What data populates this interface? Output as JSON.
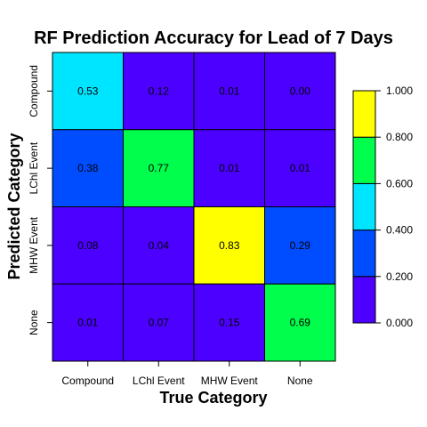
{
  "chart_data": {
    "type": "heatmap",
    "title": "RF Prediction Accuracy for Lead of 7 Days",
    "xlabel": "True Category",
    "ylabel": "Predicted Category",
    "x_categories": [
      "Compound",
      "LChl Event",
      "MHW Event",
      "None"
    ],
    "y_categories": [
      "Compound",
      "LChl Event",
      "MHW Event",
      "None"
    ],
    "values": [
      [
        0.53,
        0.12,
        0.01,
        0.0
      ],
      [
        0.38,
        0.77,
        0.01,
        0.01
      ],
      [
        0.08,
        0.04,
        0.83,
        0.29
      ],
      [
        0.01,
        0.07,
        0.15,
        0.69
      ]
    ],
    "value_labels": [
      [
        "0.53",
        "0.12",
        "0.01",
        "0.00"
      ],
      [
        "0.38",
        "0.77",
        "0.01",
        "0.01"
      ],
      [
        "0.08",
        "0.04",
        "0.83",
        "0.29"
      ],
      [
        "0.01",
        "0.07",
        "0.15",
        "0.69"
      ]
    ],
    "color_scale": {
      "breaks": [
        0,
        0.2,
        0.4,
        0.6,
        0.8,
        1.0
      ],
      "colors": [
        "#4C00FF",
        "#004CFF",
        "#00E5FF",
        "#00FF4D",
        "#FFFF00"
      ],
      "tick_labels": [
        "0.000",
        "0.200",
        "0.400",
        "0.600",
        "0.800",
        "1.000"
      ]
    },
    "legend_position": "right",
    "grid": false
  }
}
